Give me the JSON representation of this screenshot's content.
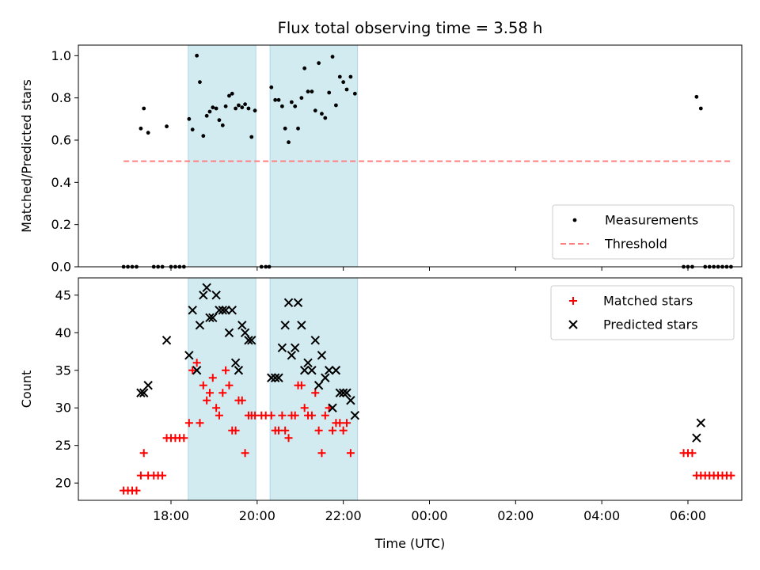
{
  "chart_data": [
    {
      "type": "scatter",
      "title": "Flux total observing time = 3.58 h",
      "ylabel": "Matched/Predicted stars",
      "xlabel": "",
      "ylim": [
        0,
        1.05
      ],
      "yticks": [
        0.0,
        0.2,
        0.4,
        0.6,
        0.8,
        1.0
      ],
      "ytick_labels": [
        "0.0",
        "0.2",
        "0.4",
        "0.6",
        "0.8",
        "1.0"
      ],
      "x_unit": "hours since 00:00 UTC of the first night (24 = next midnight)",
      "xlim": [
        15.85,
        31.25
      ],
      "shaded_intervals": [
        [
          18.4,
          19.97
        ],
        [
          20.3,
          22.33
        ]
      ],
      "legend": {
        "position": "lower-right",
        "entries": [
          "Measurements",
          "Threshold"
        ]
      },
      "series": [
        {
          "name": "Measurements",
          "marker": "dot",
          "color": "#000000",
          "points": [
            [
              16.9,
              0
            ],
            [
              17.0,
              0
            ],
            [
              17.1,
              0
            ],
            [
              17.2,
              0
            ],
            [
              17.3,
              0.655
            ],
            [
              17.37,
              0.75
            ],
            [
              17.47,
              0.635
            ],
            [
              17.6,
              0
            ],
            [
              17.7,
              0
            ],
            [
              17.8,
              0
            ],
            [
              17.9,
              0.665
            ],
            [
              18.0,
              0
            ],
            [
              18.1,
              0
            ],
            [
              18.2,
              0
            ],
            [
              18.3,
              0
            ],
            [
              18.42,
              0.7
            ],
            [
              18.5,
              0.65
            ],
            [
              18.6,
              1.0
            ],
            [
              18.67,
              0.875
            ],
            [
              18.75,
              0.62
            ],
            [
              18.83,
              0.715
            ],
            [
              18.9,
              0.735
            ],
            [
              18.97,
              0.755
            ],
            [
              19.05,
              0.75
            ],
            [
              19.12,
              0.695
            ],
            [
              19.2,
              0.67
            ],
            [
              19.27,
              0.76
            ],
            [
              19.35,
              0.81
            ],
            [
              19.42,
              0.82
            ],
            [
              19.5,
              0.75
            ],
            [
              19.57,
              0.765
            ],
            [
              19.65,
              0.755
            ],
            [
              19.72,
              0.77
            ],
            [
              19.8,
              0.75
            ],
            [
              19.87,
              0.615
            ],
            [
              19.95,
              0.74
            ],
            [
              20.1,
              0
            ],
            [
              20.2,
              0
            ],
            [
              20.28,
              0
            ],
            [
              20.33,
              0.85
            ],
            [
              20.42,
              0.79
            ],
            [
              20.5,
              0.79
            ],
            [
              20.58,
              0.76
            ],
            [
              20.65,
              0.655
            ],
            [
              20.73,
              0.59
            ],
            [
              20.8,
              0.78
            ],
            [
              20.88,
              0.76
            ],
            [
              20.95,
              0.655
            ],
            [
              21.03,
              0.8
            ],
            [
              21.1,
              0.94
            ],
            [
              21.18,
              0.83
            ],
            [
              21.27,
              0.83
            ],
            [
              21.35,
              0.74
            ],
            [
              21.43,
              0.965
            ],
            [
              21.5,
              0.725
            ],
            [
              21.58,
              0.705
            ],
            [
              21.67,
              0.825
            ],
            [
              21.75,
              0.995
            ],
            [
              21.83,
              0.765
            ],
            [
              21.92,
              0.9
            ],
            [
              22.0,
              0.875
            ],
            [
              22.08,
              0.84
            ],
            [
              22.17,
              0.9
            ],
            [
              22.27,
              0.82
            ],
            [
              29.9,
              0
            ],
            [
              30.0,
              0
            ],
            [
              30.1,
              0
            ],
            [
              30.2,
              0.805
            ],
            [
              30.3,
              0.75
            ],
            [
              30.4,
              0
            ],
            [
              30.5,
              0
            ],
            [
              30.6,
              0
            ],
            [
              30.7,
              0
            ],
            [
              30.8,
              0
            ],
            [
              30.9,
              0
            ],
            [
              31.0,
              0
            ]
          ]
        },
        {
          "name": "Threshold",
          "marker": "dashed-line",
          "color": "#ff7f7f",
          "points": [
            [
              16.9,
              0.5
            ],
            [
              31.0,
              0.5
            ]
          ]
        }
      ]
    },
    {
      "type": "scatter",
      "title": "",
      "ylabel": "Count",
      "xlabel": "Time (UTC)",
      "ylim": [
        17.7,
        47.3
      ],
      "yticks": [
        20,
        25,
        30,
        35,
        40,
        45
      ],
      "ytick_labels": [
        "20",
        "25",
        "30",
        "35",
        "40",
        "45"
      ],
      "x_unit": "hours since 00:00 UTC of the first night (24 = next midnight)",
      "xlim": [
        15.85,
        31.25
      ],
      "xticks": [
        18,
        20,
        22,
        24,
        26,
        28,
        30
      ],
      "xtick_labels": [
        "18:00",
        "20:00",
        "22:00",
        "00:00",
        "02:00",
        "04:00",
        "06:00"
      ],
      "shaded_intervals": [
        [
          18.4,
          19.97
        ],
        [
          20.3,
          22.33
        ]
      ],
      "legend": {
        "position": "top-right",
        "entries": [
          "Matched stars",
          "Predicted stars"
        ]
      },
      "series": [
        {
          "name": "Matched stars",
          "marker": "plus",
          "color": "#ff0000",
          "points": [
            [
              16.9,
              19
            ],
            [
              17.0,
              19
            ],
            [
              17.1,
              19
            ],
            [
              17.2,
              19
            ],
            [
              17.3,
              21
            ],
            [
              17.37,
              24
            ],
            [
              17.47,
              21
            ],
            [
              17.6,
              21
            ],
            [
              17.7,
              21
            ],
            [
              17.8,
              21
            ],
            [
              17.9,
              26
            ],
            [
              18.0,
              26
            ],
            [
              18.1,
              26
            ],
            [
              18.2,
              26
            ],
            [
              18.3,
              26
            ],
            [
              18.42,
              28
            ],
            [
              18.5,
              35
            ],
            [
              18.6,
              36
            ],
            [
              18.67,
              28
            ],
            [
              18.75,
              33
            ],
            [
              18.83,
              31
            ],
            [
              18.9,
              32
            ],
            [
              18.97,
              34
            ],
            [
              19.05,
              30
            ],
            [
              19.12,
              29
            ],
            [
              19.2,
              32
            ],
            [
              19.27,
              35
            ],
            [
              19.35,
              33
            ],
            [
              19.42,
              27
            ],
            [
              19.5,
              27
            ],
            [
              19.57,
              31
            ],
            [
              19.65,
              31
            ],
            [
              19.72,
              24
            ],
            [
              19.8,
              29
            ],
            [
              19.87,
              29
            ],
            [
              19.95,
              29
            ],
            [
              20.1,
              29
            ],
            [
              20.2,
              29
            ],
            [
              20.33,
              29
            ],
            [
              20.42,
              27
            ],
            [
              20.5,
              27
            ],
            [
              20.58,
              29
            ],
            [
              20.65,
              27
            ],
            [
              20.73,
              26
            ],
            [
              20.8,
              29
            ],
            [
              20.88,
              29
            ],
            [
              20.95,
              33
            ],
            [
              21.03,
              33
            ],
            [
              21.1,
              30
            ],
            [
              21.18,
              29
            ],
            [
              21.27,
              29
            ],
            [
              21.35,
              32
            ],
            [
              21.43,
              27
            ],
            [
              21.5,
              24
            ],
            [
              21.58,
              29
            ],
            [
              21.67,
              30
            ],
            [
              21.75,
              27
            ],
            [
              21.83,
              28
            ],
            [
              21.92,
              28
            ],
            [
              22.0,
              27
            ],
            [
              22.08,
              28
            ],
            [
              22.17,
              24
            ],
            [
              29.9,
              24
            ],
            [
              30.0,
              24
            ],
            [
              30.1,
              24
            ],
            [
              30.2,
              21
            ],
            [
              30.3,
              21
            ],
            [
              30.4,
              21
            ],
            [
              30.5,
              21
            ],
            [
              30.6,
              21
            ],
            [
              30.7,
              21
            ],
            [
              30.8,
              21
            ],
            [
              30.9,
              21
            ],
            [
              31.0,
              21
            ]
          ]
        },
        {
          "name": "Predicted stars",
          "marker": "x",
          "color": "#000000",
          "points": [
            [
              17.3,
              32
            ],
            [
              17.37,
              32
            ],
            [
              17.47,
              33
            ],
            [
              17.9,
              39
            ],
            [
              18.42,
              37
            ],
            [
              18.5,
              43
            ],
            [
              18.6,
              35
            ],
            [
              18.67,
              41
            ],
            [
              18.75,
              45
            ],
            [
              18.83,
              46
            ],
            [
              18.9,
              42
            ],
            [
              18.97,
              42
            ],
            [
              19.05,
              45
            ],
            [
              19.12,
              43
            ],
            [
              19.2,
              43
            ],
            [
              19.27,
              43
            ],
            [
              19.35,
              40
            ],
            [
              19.42,
              43
            ],
            [
              19.5,
              36
            ],
            [
              19.57,
              35
            ],
            [
              19.65,
              41
            ],
            [
              19.72,
              40
            ],
            [
              19.8,
              39
            ],
            [
              19.87,
              39
            ],
            [
              20.33,
              34
            ],
            [
              20.42,
              34
            ],
            [
              20.5,
              34
            ],
            [
              20.58,
              38
            ],
            [
              20.65,
              41
            ],
            [
              20.73,
              44
            ],
            [
              20.8,
              37
            ],
            [
              20.88,
              38
            ],
            [
              20.95,
              44
            ],
            [
              21.03,
              41
            ],
            [
              21.1,
              35
            ],
            [
              21.18,
              36
            ],
            [
              21.27,
              35
            ],
            [
              21.35,
              39
            ],
            [
              21.43,
              33
            ],
            [
              21.5,
              37
            ],
            [
              21.58,
              34
            ],
            [
              21.67,
              35
            ],
            [
              21.75,
              30
            ],
            [
              21.83,
              35
            ],
            [
              21.92,
              32
            ],
            [
              22.0,
              32
            ],
            [
              22.08,
              32
            ],
            [
              22.17,
              31
            ],
            [
              22.27,
              29
            ],
            [
              30.2,
              26
            ],
            [
              30.3,
              28
            ]
          ]
        }
      ]
    }
  ]
}
